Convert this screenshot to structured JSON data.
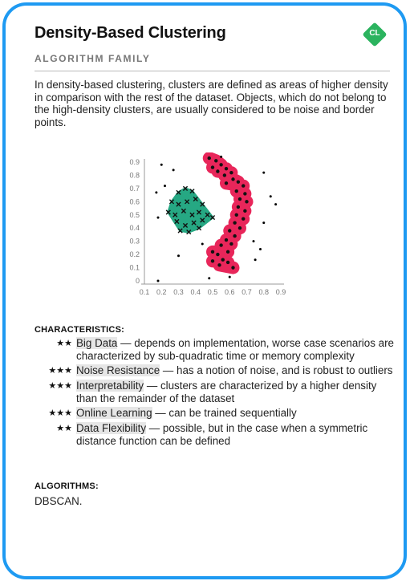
{
  "card": {
    "title": "Density-Based Clustering",
    "badge": "CL",
    "subtitle": "ALGORITHM FAMILY",
    "description": "In density-based clustering, clusters are defined as areas of higher density in comparison with the rest of the dataset. Objects, which do not belong to the high-density clusters, are usually considered to be noise and border points.",
    "border_color": "#1e9af2",
    "badge_color": "#2bb35e"
  },
  "chart_data": {
    "type": "scatter",
    "xlim": [
      0.1,
      0.9
    ],
    "ylim": [
      0,
      0.9
    ],
    "x_ticks": [
      "0.1",
      "0.2",
      "0.3",
      "0.4",
      "0.5",
      "0.6",
      "0.7",
      "0.8",
      "0.9"
    ],
    "y_ticks": [
      "0",
      "0.1",
      "0.2",
      "0.3",
      "0.4",
      "0.5",
      "0.6",
      "0.7",
      "0.8",
      "0.9"
    ],
    "colors": {
      "cluster_green": "#26a883",
      "cluster_red": "#e8265a",
      "noise": "#000000"
    },
    "green_cross_points": [
      [
        0.3,
        0.67
      ],
      [
        0.34,
        0.7
      ],
      [
        0.38,
        0.68
      ],
      [
        0.26,
        0.6
      ],
      [
        0.3,
        0.58
      ],
      [
        0.35,
        0.6
      ],
      [
        0.4,
        0.62
      ],
      [
        0.44,
        0.58
      ],
      [
        0.24,
        0.52
      ],
      [
        0.28,
        0.5
      ],
      [
        0.33,
        0.53
      ],
      [
        0.38,
        0.5
      ],
      [
        0.42,
        0.52
      ],
      [
        0.47,
        0.5
      ],
      [
        0.5,
        0.48
      ],
      [
        0.29,
        0.45
      ],
      [
        0.34,
        0.42
      ],
      [
        0.39,
        0.44
      ],
      [
        0.44,
        0.46
      ],
      [
        0.36,
        0.37
      ],
      [
        0.31,
        0.38
      ],
      [
        0.42,
        0.4
      ]
    ],
    "red_points": [
      [
        0.48,
        0.93
      ],
      [
        0.52,
        0.91
      ],
      [
        0.55,
        0.88
      ],
      [
        0.5,
        0.86
      ],
      [
        0.53,
        0.83
      ],
      [
        0.58,
        0.85
      ],
      [
        0.57,
        0.8
      ],
      [
        0.61,
        0.82
      ],
      [
        0.62,
        0.77
      ],
      [
        0.58,
        0.74
      ],
      [
        0.65,
        0.75
      ],
      [
        0.68,
        0.72
      ],
      [
        0.64,
        0.68
      ],
      [
        0.69,
        0.66
      ],
      [
        0.66,
        0.62
      ],
      [
        0.7,
        0.6
      ],
      [
        0.65,
        0.56
      ],
      [
        0.69,
        0.53
      ],
      [
        0.64,
        0.5
      ],
      [
        0.68,
        0.47
      ],
      [
        0.63,
        0.44
      ],
      [
        0.66,
        0.4
      ],
      [
        0.6,
        0.38
      ],
      [
        0.63,
        0.34
      ],
      [
        0.58,
        0.31
      ],
      [
        0.61,
        0.28
      ],
      [
        0.55,
        0.27
      ],
      [
        0.59,
        0.22
      ],
      [
        0.53,
        0.2
      ],
      [
        0.56,
        0.16
      ],
      [
        0.5,
        0.15
      ],
      [
        0.54,
        0.12
      ],
      [
        0.59,
        0.14
      ],
      [
        0.62,
        0.1
      ],
      [
        0.5,
        0.22
      ]
    ],
    "noise_points": [
      [
        0.2,
        0.88
      ],
      [
        0.27,
        0.84
      ],
      [
        0.55,
        0.94
      ],
      [
        0.8,
        0.82
      ],
      [
        0.17,
        0.67
      ],
      [
        0.22,
        0.72
      ],
      [
        0.84,
        0.64
      ],
      [
        0.87,
        0.58
      ],
      [
        0.18,
        0.48
      ],
      [
        0.8,
        0.44
      ],
      [
        0.78,
        0.24
      ],
      [
        0.75,
        0.16
      ],
      [
        0.3,
        0.19
      ],
      [
        0.48,
        0.02
      ],
      [
        0.6,
        0.03
      ],
      [
        0.18,
        0.0
      ],
      [
        0.44,
        0.28
      ],
      [
        0.74,
        0.3
      ]
    ]
  },
  "characteristics": {
    "title": "CHARACTERISTICS:",
    "items": [
      {
        "stars": "★★",
        "name": "Big Data",
        "text": " — depends on implementation, worse case scenarios are characterized by sub-quadratic time or memory complexity"
      },
      {
        "stars": "★★★",
        "name": "Noise Resistance",
        "text": " — has a notion of noise, and is robust to outliers"
      },
      {
        "stars": "★★★",
        "name": "Interpretability",
        "text": " — clusters are characterized by a higher density than the remainder of the dataset"
      },
      {
        "stars": "★★★",
        "name": "Online Learning",
        "text": " — can be trained sequentially"
      },
      {
        "stars": "★★",
        "name": "Data Flexibility",
        "text": " — possible, but in the case when a symmetric distance function can be defined"
      }
    ]
  },
  "algorithms": {
    "title": "ALGORITHMS:",
    "text": "DBSCAN."
  }
}
